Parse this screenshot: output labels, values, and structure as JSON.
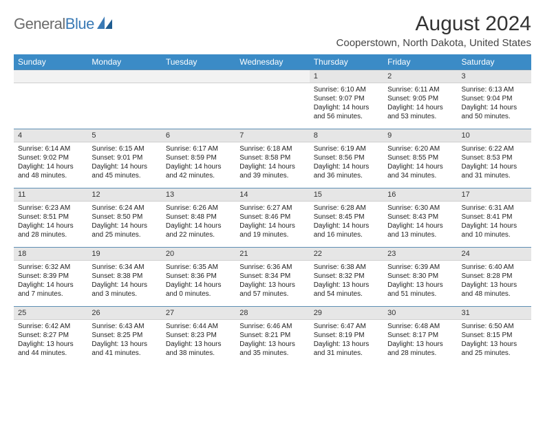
{
  "brand": {
    "part1": "General",
    "part2": "Blue"
  },
  "title": "August 2024",
  "location": "Cooperstown, North Dakota, United States",
  "colors": {
    "header_bg": "#3b8bc6",
    "day_head_bg": "#e6e6e6",
    "row_border": "#5b8db3"
  },
  "weekdays": [
    "Sunday",
    "Monday",
    "Tuesday",
    "Wednesday",
    "Thursday",
    "Friday",
    "Saturday"
  ],
  "weeks": [
    [
      null,
      null,
      null,
      null,
      {
        "n": "1",
        "sunrise": "6:10 AM",
        "sunset": "9:07 PM",
        "daylight": "14 hours and 56 minutes."
      },
      {
        "n": "2",
        "sunrise": "6:11 AM",
        "sunset": "9:05 PM",
        "daylight": "14 hours and 53 minutes."
      },
      {
        "n": "3",
        "sunrise": "6:13 AM",
        "sunset": "9:04 PM",
        "daylight": "14 hours and 50 minutes."
      }
    ],
    [
      {
        "n": "4",
        "sunrise": "6:14 AM",
        "sunset": "9:02 PM",
        "daylight": "14 hours and 48 minutes."
      },
      {
        "n": "5",
        "sunrise": "6:15 AM",
        "sunset": "9:01 PM",
        "daylight": "14 hours and 45 minutes."
      },
      {
        "n": "6",
        "sunrise": "6:17 AM",
        "sunset": "8:59 PM",
        "daylight": "14 hours and 42 minutes."
      },
      {
        "n": "7",
        "sunrise": "6:18 AM",
        "sunset": "8:58 PM",
        "daylight": "14 hours and 39 minutes."
      },
      {
        "n": "8",
        "sunrise": "6:19 AM",
        "sunset": "8:56 PM",
        "daylight": "14 hours and 36 minutes."
      },
      {
        "n": "9",
        "sunrise": "6:20 AM",
        "sunset": "8:55 PM",
        "daylight": "14 hours and 34 minutes."
      },
      {
        "n": "10",
        "sunrise": "6:22 AM",
        "sunset": "8:53 PM",
        "daylight": "14 hours and 31 minutes."
      }
    ],
    [
      {
        "n": "11",
        "sunrise": "6:23 AM",
        "sunset": "8:51 PM",
        "daylight": "14 hours and 28 minutes."
      },
      {
        "n": "12",
        "sunrise": "6:24 AM",
        "sunset": "8:50 PM",
        "daylight": "14 hours and 25 minutes."
      },
      {
        "n": "13",
        "sunrise": "6:26 AM",
        "sunset": "8:48 PM",
        "daylight": "14 hours and 22 minutes."
      },
      {
        "n": "14",
        "sunrise": "6:27 AM",
        "sunset": "8:46 PM",
        "daylight": "14 hours and 19 minutes."
      },
      {
        "n": "15",
        "sunrise": "6:28 AM",
        "sunset": "8:45 PM",
        "daylight": "14 hours and 16 minutes."
      },
      {
        "n": "16",
        "sunrise": "6:30 AM",
        "sunset": "8:43 PM",
        "daylight": "14 hours and 13 minutes."
      },
      {
        "n": "17",
        "sunrise": "6:31 AM",
        "sunset": "8:41 PM",
        "daylight": "14 hours and 10 minutes."
      }
    ],
    [
      {
        "n": "18",
        "sunrise": "6:32 AM",
        "sunset": "8:39 PM",
        "daylight": "14 hours and 7 minutes."
      },
      {
        "n": "19",
        "sunrise": "6:34 AM",
        "sunset": "8:38 PM",
        "daylight": "14 hours and 3 minutes."
      },
      {
        "n": "20",
        "sunrise": "6:35 AM",
        "sunset": "8:36 PM",
        "daylight": "14 hours and 0 minutes."
      },
      {
        "n": "21",
        "sunrise": "6:36 AM",
        "sunset": "8:34 PM",
        "daylight": "13 hours and 57 minutes."
      },
      {
        "n": "22",
        "sunrise": "6:38 AM",
        "sunset": "8:32 PM",
        "daylight": "13 hours and 54 minutes."
      },
      {
        "n": "23",
        "sunrise": "6:39 AM",
        "sunset": "8:30 PM",
        "daylight": "13 hours and 51 minutes."
      },
      {
        "n": "24",
        "sunrise": "6:40 AM",
        "sunset": "8:28 PM",
        "daylight": "13 hours and 48 minutes."
      }
    ],
    [
      {
        "n": "25",
        "sunrise": "6:42 AM",
        "sunset": "8:27 PM",
        "daylight": "13 hours and 44 minutes."
      },
      {
        "n": "26",
        "sunrise": "6:43 AM",
        "sunset": "8:25 PM",
        "daylight": "13 hours and 41 minutes."
      },
      {
        "n": "27",
        "sunrise": "6:44 AM",
        "sunset": "8:23 PM",
        "daylight": "13 hours and 38 minutes."
      },
      {
        "n": "28",
        "sunrise": "6:46 AM",
        "sunset": "8:21 PM",
        "daylight": "13 hours and 35 minutes."
      },
      {
        "n": "29",
        "sunrise": "6:47 AM",
        "sunset": "8:19 PM",
        "daylight": "13 hours and 31 minutes."
      },
      {
        "n": "30",
        "sunrise": "6:48 AM",
        "sunset": "8:17 PM",
        "daylight": "13 hours and 28 minutes."
      },
      {
        "n": "31",
        "sunrise": "6:50 AM",
        "sunset": "8:15 PM",
        "daylight": "13 hours and 25 minutes."
      }
    ]
  ],
  "labels": {
    "sunrise": "Sunrise:",
    "sunset": "Sunset:",
    "daylight": "Daylight:"
  }
}
